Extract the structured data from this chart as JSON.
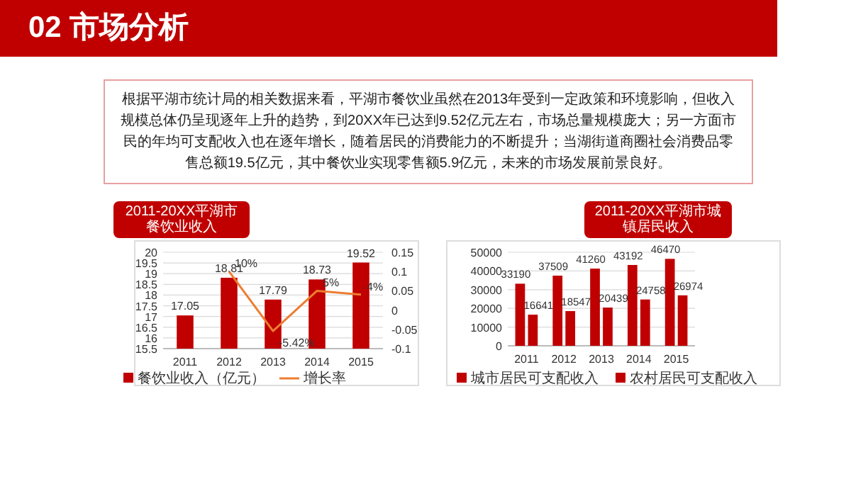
{
  "chart_data": [
    {
      "type": "bar",
      "title": "2011-20XX平湖市餐饮业收入",
      "annotations": [
        "02 市场分析",
        "根据平湖市统计局的相关数据来看，平湖市餐饮业虽然在2013年受到一定政策和环境影响，但收入规模总体仍呈现逐年上升的趋势，到20XX年已达到9.52亿元左右，市场总量规模庞大；另一方面市民的年均可支配收入也在逐年增长，随着居民的消费能力的不断提升；当湖街道商圈社会消费品零售总额19.5亿元，其中餐饮业实现零售额5.9亿元，未来的市场发展前景良好。"
      ],
      "categories": [
        "2011",
        "2012",
        "2013",
        "2014",
        "2015"
      ],
      "series": [
        {
          "name": "餐饮业收入（亿元）",
          "color": "#c00000",
          "values": [
            17.05,
            18.81,
            17.79,
            18.73,
            19.52
          ],
          "value_labels": [
            "17.05",
            "18.81",
            "17.79",
            "18.73",
            "19.52"
          ]
        },
        {
          "name": "增长率",
          "type": "line",
          "axis": "y2",
          "color": "#ed7d31",
          "values": [
            null,
            0.1,
            -0.0542,
            0.05,
            0.04
          ],
          "value_labels": [
            null,
            "10%",
            "-5.42%",
            "5%",
            "4%"
          ]
        }
      ],
      "ylim": [
        15.5,
        20
      ],
      "yticks": [
        15.5,
        16,
        16.5,
        17,
        17.5,
        18,
        18.5,
        19,
        19.5,
        20
      ],
      "y2lim": [
        -0.1,
        0.15
      ],
      "y2ticks": [
        -0.1,
        -0.05,
        0,
        0.05,
        0.1,
        0.15
      ],
      "grid": "y",
      "legend": "bottom"
    },
    {
      "type": "bar",
      "title": "2011-20XX平湖市城镇居民收入",
      "categories": [
        "2011",
        "2012",
        "2013",
        "2014",
        "2015"
      ],
      "series": [
        {
          "name": "城市居民可支配收入",
          "color": "#c00000",
          "values": [
            33190,
            37509,
            41260,
            43192,
            46470
          ]
        },
        {
          "name": "农村居民可支配收入",
          "color": "#c00000",
          "values": [
            16641,
            18547,
            20439,
            24758,
            26974
          ]
        }
      ],
      "ylim": [
        0,
        50000
      ],
      "yticks": [
        0,
        10000,
        20000,
        30000,
        40000,
        50000
      ],
      "data_labels": true,
      "grid": "y",
      "legend": "bottom"
    }
  ]
}
